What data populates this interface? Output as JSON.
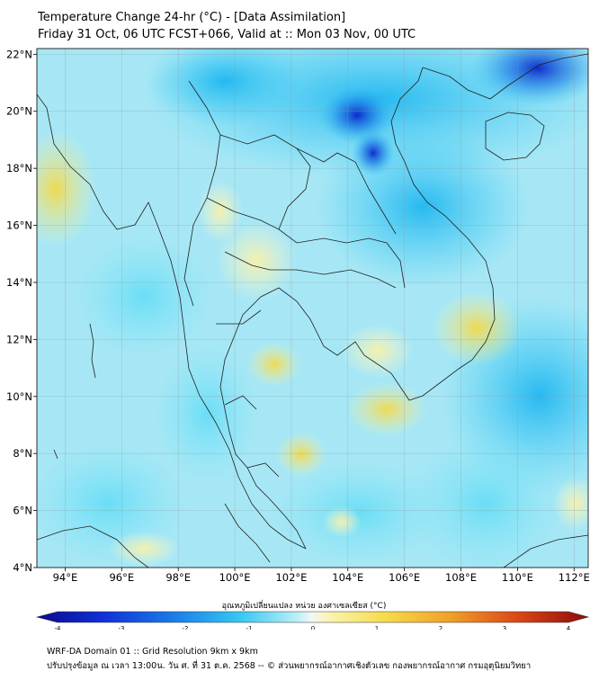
{
  "title": {
    "line1": "Temperature Change 24-hr (°C) - [Data Assimilation]",
    "line2": "Friday 31 Oct, 06 UTC FCST+066, Valid at :: Mon 03 Nov, 00 UTC"
  },
  "map": {
    "lat_labels": [
      "22°N",
      "20°N",
      "18°N",
      "16°N",
      "14°N",
      "12°N",
      "10°N",
      "8°N",
      "6°N",
      "4°N"
    ],
    "lon_labels": [
      "94°E",
      "96°E",
      "98°E",
      "100°E",
      "102°E",
      "104°E",
      "106°E",
      "108°E",
      "110°E",
      "112°E"
    ],
    "lat_range": [
      4,
      22.2
    ],
    "lon_range": [
      93,
      112.5
    ]
  },
  "colorbar": {
    "title": "อุณหภูมิเปลี่ยนแปลง หน่วย องศาเซลเซียส (°C)",
    "tick_labels": [
      "-4",
      "-3",
      "-2",
      "-1",
      "0",
      "1",
      "2",
      "3",
      "4"
    ],
    "range": [
      -4,
      4
    ]
  },
  "footer": {
    "line1": "WRF-DA Domain 01 :: Grid Resolution 9km x 9km",
    "line2": "ปรับปรุงข้อมูล ณ เวลา 13:00น. วัน ศ. ที่ 31 ต.ค. 2568 -- © ส่วนพยากรณ์อากาศเชิงตัวเลข กองพยากรณ์อากาศ กรมอุตุนิยมวิทยา"
  }
}
